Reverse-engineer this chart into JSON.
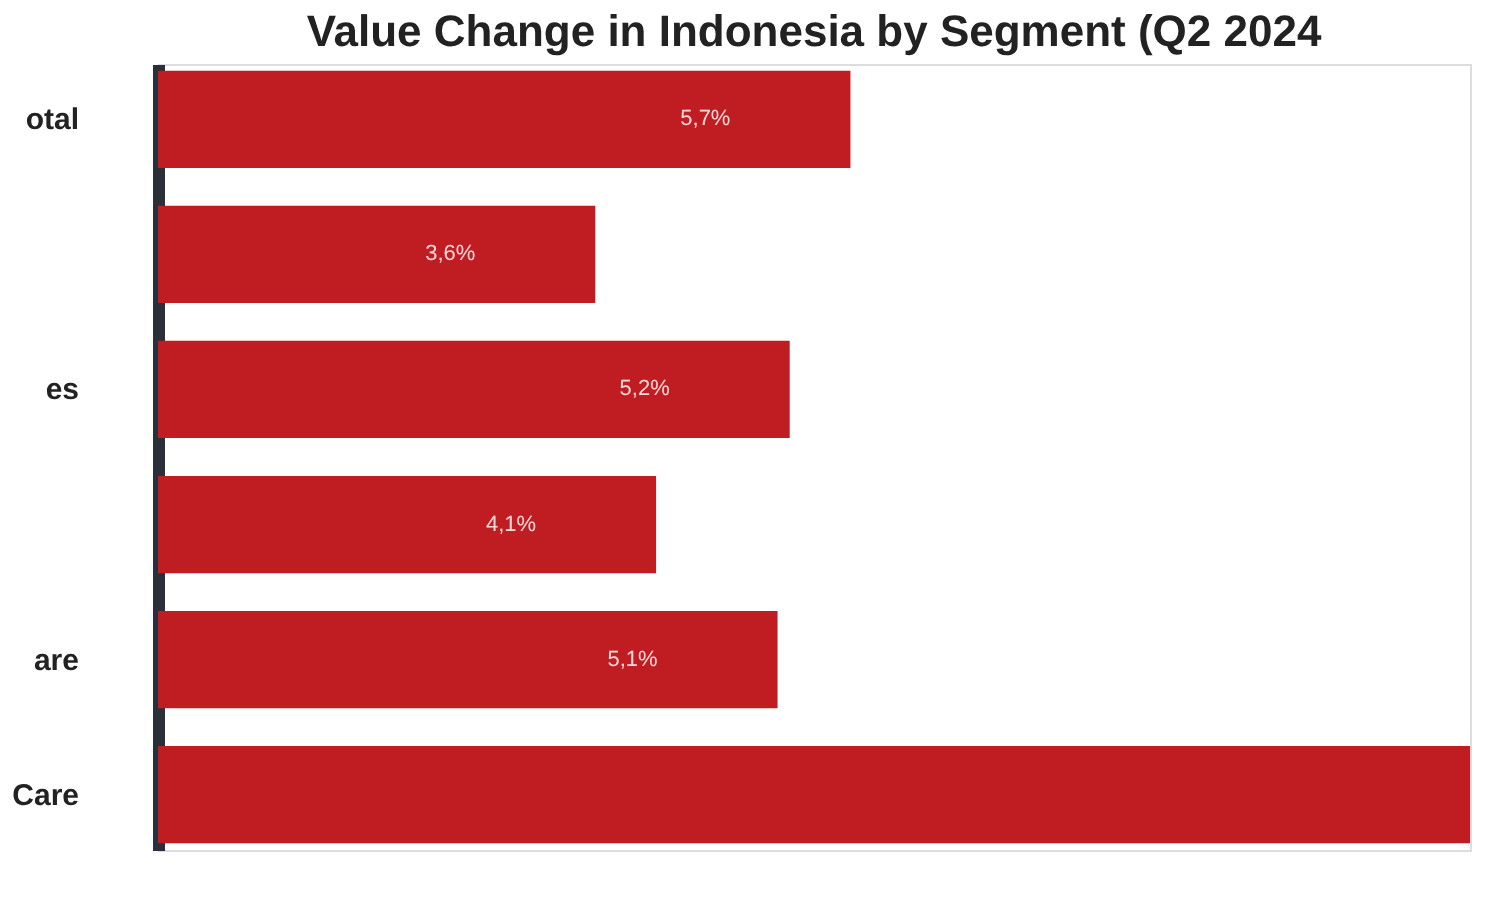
{
  "chart_data": {
    "type": "bar",
    "orientation": "horizontal",
    "title": "Value Change in Indonesia by Segment (Q2 2024",
    "categories": [
      "otal",
      null,
      "es",
      null,
      "are",
      "Care"
    ],
    "values": [
      5.7,
      3.6,
      5.2,
      4.1,
      5.1,
      10.8
    ],
    "value_labels": [
      "5,7%",
      "3,6%",
      "5,2%",
      "4,1%",
      "5,1%",
      null
    ],
    "color": "#c01d22",
    "grid": false
  }
}
